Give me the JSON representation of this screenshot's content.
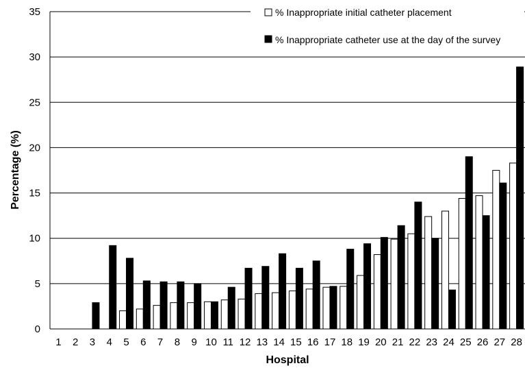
{
  "chart_data": {
    "type": "bar",
    "xlabel": "Hospital",
    "ylabel": "Percentage (%)",
    "ylim": [
      0,
      35
    ],
    "yticks": [
      0,
      5,
      10,
      15,
      20,
      25,
      30,
      35
    ],
    "grid": "horizontal",
    "legend_position": "top-right",
    "categories": [
      "1",
      "2",
      "3",
      "4",
      "5",
      "6",
      "7",
      "8",
      "9",
      "10",
      "11",
      "12",
      "13",
      "14",
      "15",
      "16",
      "17",
      "18",
      "19",
      "20",
      "21",
      "22",
      "23",
      "24",
      "25",
      "26",
      "27",
      "28"
    ],
    "series": [
      {
        "name": "% Inappropriate initial catheter placement",
        "color": "#ffffff",
        "values": [
          0,
          0,
          0,
          0,
          2.0,
          2.2,
          2.6,
          2.9,
          2.9,
          3.0,
          3.2,
          3.3,
          3.9,
          4.0,
          4.2,
          4.4,
          4.6,
          4.7,
          5.9,
          8.2,
          9.9,
          10.5,
          12.4,
          13.0,
          14.4,
          14.7,
          17.5,
          18.3
        ]
      },
      {
        "name": "% Inappropriate catheter use at the day of the survey",
        "color": "#000000",
        "values": [
          0,
          0,
          2.9,
          9.2,
          7.8,
          5.3,
          5.2,
          5.2,
          5.0,
          3.0,
          4.6,
          6.7,
          6.9,
          8.3,
          6.7,
          7.5,
          4.7,
          8.8,
          9.4,
          10.1,
          11.4,
          14.0,
          10.0,
          4.3,
          19.0,
          12.5,
          16.1,
          28.9
        ]
      }
    ]
  }
}
